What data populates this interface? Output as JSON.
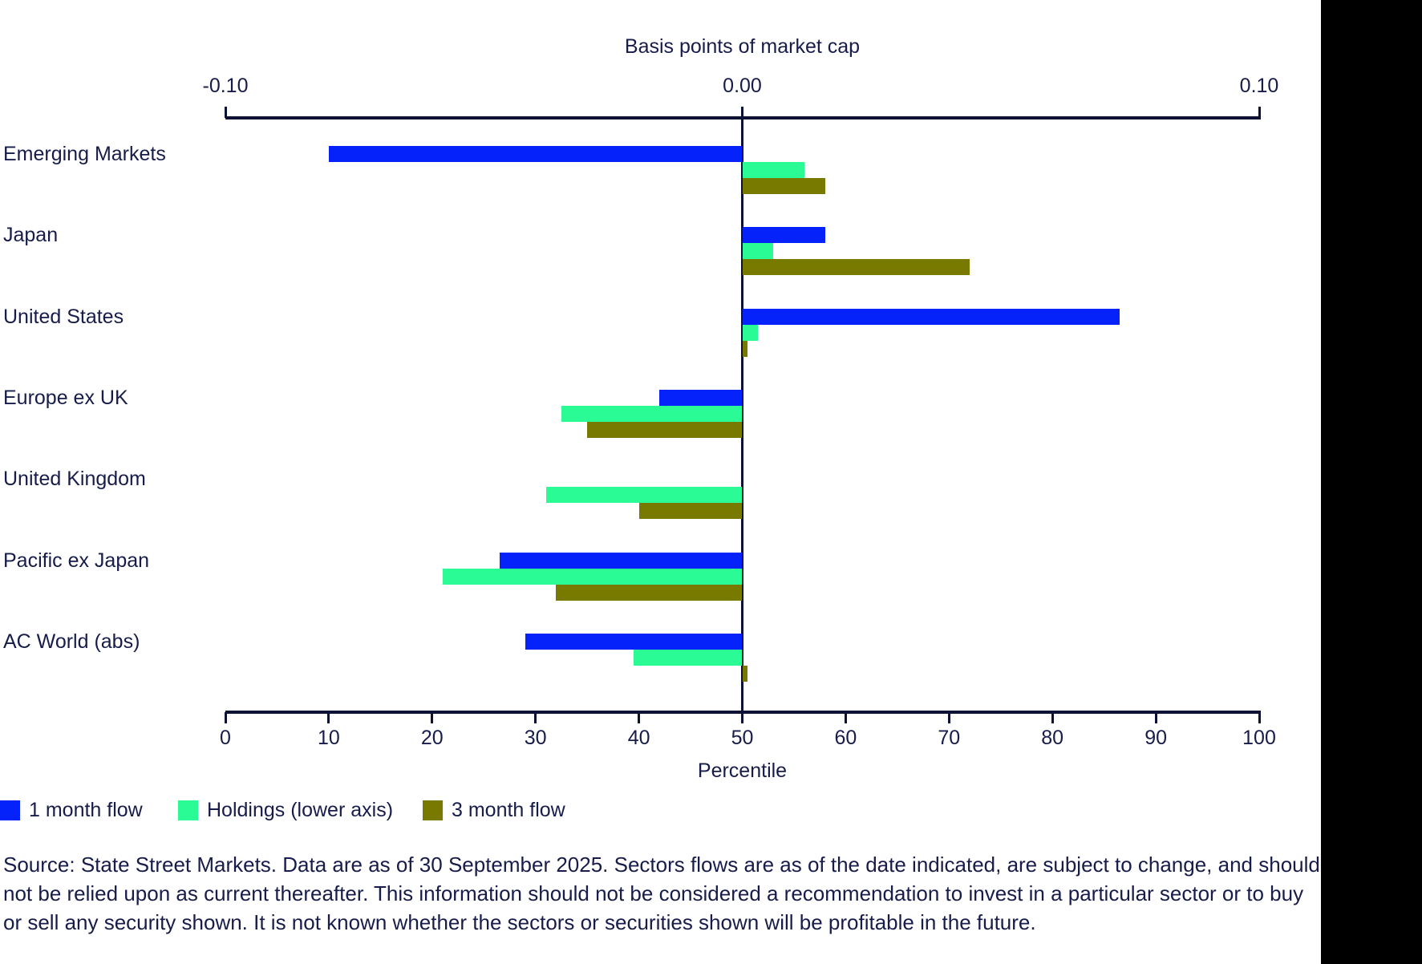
{
  "chart_data": {
    "type": "bar",
    "orientation": "horizontal-diverging",
    "title": "Basis points of market cap",
    "categories": [
      "Emerging Markets",
      "Japan",
      "United States",
      "Europe ex UK",
      "United Kingdom",
      "Pacific ex Japan",
      "AC World (abs)"
    ],
    "series": [
      {
        "name": "1 month flow",
        "color": "#0522fa",
        "axis": "upper",
        "unit": "basis points of market cap",
        "values": [
          -0.08,
          0.016,
          0.073,
          -0.016,
          0,
          -0.047,
          -0.042
        ]
      },
      {
        "name": "Holdings (lower axis)",
        "color": "#2bfb94",
        "axis": "lower",
        "unit": "percentile",
        "values": [
          56,
          53,
          51.5,
          32.5,
          31,
          21,
          39.5
        ]
      },
      {
        "name": "3 month flow",
        "color": "#787a00",
        "axis": "upper",
        "unit": "basis points of market cap",
        "values": [
          0.016,
          0.044,
          0.001,
          -0.03,
          -0.02,
          -0.036,
          0.001
        ]
      }
    ],
    "axes": {
      "top": {
        "title": "Basis points of market cap",
        "range": [
          -0.1,
          0.1
        ],
        "ticks": [
          {
            "label": "-0.10",
            "value": -0.1
          },
          {
            "label": "0.00",
            "value": 0
          },
          {
            "label": "0.10",
            "value": 0.1
          }
        ]
      },
      "bottom": {
        "title": "Percentile",
        "range": [
          0,
          100
        ],
        "ticks": [
          {
            "label": "0",
            "value": 0
          },
          {
            "label": "10",
            "value": 10
          },
          {
            "label": "20",
            "value": 20
          },
          {
            "label": "30",
            "value": 30
          },
          {
            "label": "40",
            "value": 40
          },
          {
            "label": "50",
            "value": 50
          },
          {
            "label": "60",
            "value": 60
          },
          {
            "label": "70",
            "value": 70
          },
          {
            "label": "80",
            "value": 80
          },
          {
            "label": "90",
            "value": 90
          },
          {
            "label": "100",
            "value": 100
          }
        ]
      }
    },
    "baseline_note": "Bars diverge from 0.00 basis points (upper axis) / 50th percentile (lower axis)",
    "grid": false,
    "legend_position": "bottom-left"
  },
  "legend": {
    "items": [
      {
        "label": "1 month flow",
        "color": "#0522fa"
      },
      {
        "label": "Holdings (lower axis)",
        "color": "#2bfb94"
      },
      {
        "label": "3 month flow",
        "color": "#787a00"
      }
    ]
  },
  "source": {
    "lines": [
      "Source: State Street Markets. Data are as of 30 September 2025. Sectors flows are as of the date indicated, are subject to change, and should",
      "not be relied upon as current thereafter. This information should not be considered a recommendation to invest in a particular sector or to buy",
      "or sell any security shown. It is not known whether the sectors or securities shown will be profitable in the future."
    ]
  },
  "colors": {
    "background": "#ffffff",
    "text": "#171c4a",
    "axis": "#0d1133",
    "right_band": "#000000"
  }
}
